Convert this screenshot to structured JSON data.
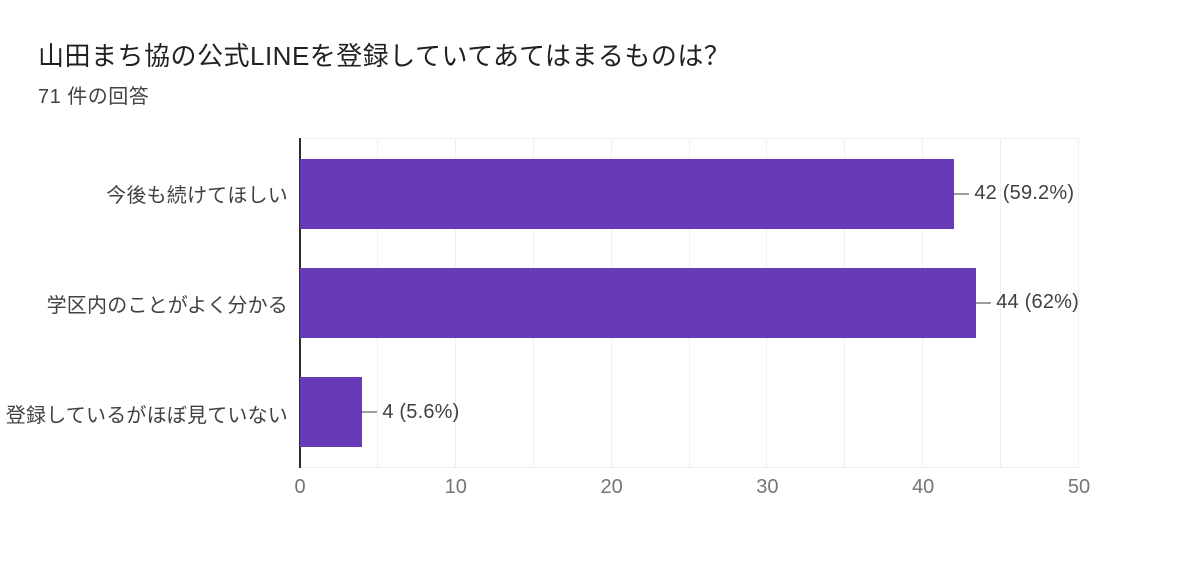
{
  "header": {
    "title": "山田まち協の公式LINEを登録していてあてはまるものは？",
    "subtitle": "71 件の回答"
  },
  "chart_data": {
    "type": "bar",
    "orientation": "horizontal",
    "title": "山田まち協の公式LINEを登録していてあてはまるものは？",
    "subtitle": "71 件の回答",
    "total_responses": 71,
    "categories": [
      "今後も続けてほしい",
      "学区内のことがよく分かる",
      "登録しているがほぼ見ていない"
    ],
    "values": [
      42,
      44,
      4
    ],
    "value_labels": [
      "42 (59.2%)",
      "44 (62%)",
      "4 (5.6%)"
    ],
    "xlim": [
      0,
      50
    ],
    "x_ticks": [
      0,
      10,
      20,
      30,
      40,
      50
    ],
    "gridline_step": 5,
    "grid": true,
    "legend": "none",
    "bar_color": "#673ab7",
    "gridline_color": "#f0f0f0",
    "axis_color": "#2c2c2c",
    "connector_color": "#9e9e9e",
    "tick_label_color": "#757575",
    "category_label_color": "#424242",
    "value_label_color": "#404040",
    "title_color": "#212121",
    "background_color": "#ffffff"
  }
}
